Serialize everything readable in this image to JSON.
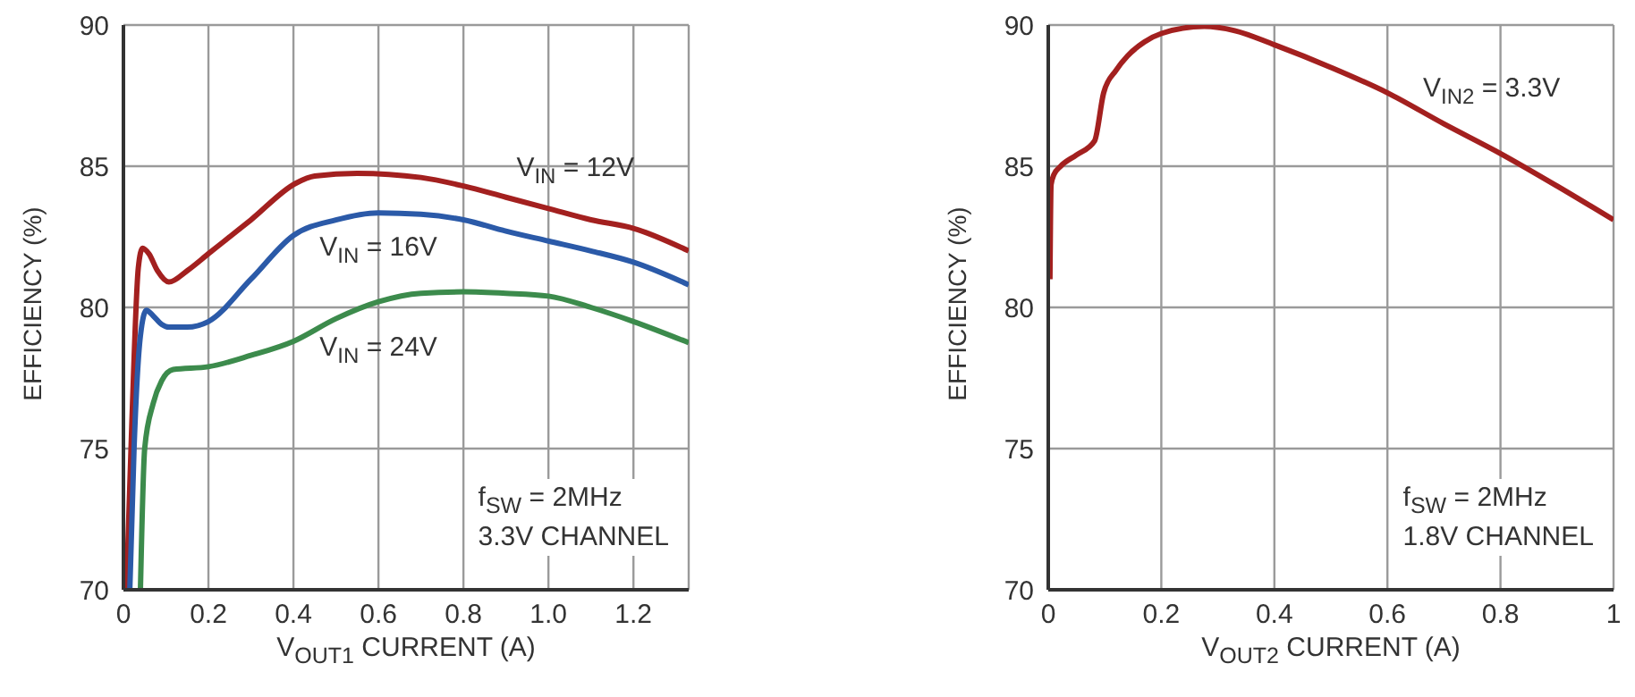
{
  "chart_data": [
    {
      "type": "line",
      "xlabel": "V$_{OUT1}$ CURRENT (A)",
      "ylabel": "EFFICIENCY (%)",
      "xlim": [
        0,
        1.33
      ],
      "xticks": [
        0,
        0.2,
        0.4,
        0.6,
        0.8,
        {
          "value": 1,
          "label": "1.0"
        },
        1.2
      ],
      "ylim": [
        70,
        90
      ],
      "yticks": [
        70,
        75,
        80,
        85,
        90
      ],
      "grid": true,
      "marker": "none",
      "annotations": [
        "f$_{SW}$ = 2MHz",
        "3.3V CHANNEL"
      ],
      "series": [
        {
          "name": "V$_{IN}$ = 12V",
          "color": "#a3201f",
          "x": [
            0.007,
            0.02,
            0.035,
            0.045,
            0.06,
            0.08,
            0.107,
            0.15,
            0.2,
            0.3,
            0.406,
            0.45,
            0.55,
            0.7,
            0.8,
            0.9,
            1.0,
            1.1,
            1.2,
            1.33
          ],
          "values": [
            70,
            76,
            81.4,
            82.1,
            81.9,
            81.3,
            80.9,
            81.3,
            81.9,
            83.1,
            84.4,
            84.65,
            84.75,
            84.6,
            84.3,
            83.9,
            83.5,
            83.1,
            82.8,
            82.0
          ]
        },
        {
          "name": "V$_{IN}$ = 16V",
          "color": "#2b5aa8",
          "x": [
            0.015,
            0.025,
            0.04,
            0.054,
            0.07,
            0.09,
            0.107,
            0.15,
            0.2,
            0.3,
            0.4,
            0.5,
            0.6,
            0.7,
            0.8,
            0.9,
            1.0,
            1.1,
            1.2,
            1.33
          ],
          "values": [
            70,
            75,
            79,
            79.9,
            79.7,
            79.4,
            79.3,
            79.3,
            79.5,
            81.0,
            82.55,
            83.1,
            83.35,
            83.3,
            83.1,
            82.7,
            82.35,
            82.0,
            81.6,
            80.8
          ]
        },
        {
          "name": "V$_{IN}$ = 24V",
          "color": "#3c8b4c",
          "x": [
            0.04,
            0.05,
            0.07,
            0.09,
            0.117,
            0.2,
            0.3,
            0.4,
            0.5,
            0.6,
            0.7,
            0.8,
            0.9,
            1.0,
            1.1,
            1.2,
            1.33
          ],
          "values": [
            70,
            75,
            76.6,
            77.4,
            77.8,
            77.9,
            78.3,
            78.8,
            79.6,
            80.2,
            80.5,
            80.55,
            80.5,
            80.4,
            80.0,
            79.5,
            78.75
          ]
        }
      ]
    },
    {
      "type": "line",
      "xlabel": "V$_{OUT2}$ CURRENT (A)",
      "ylabel": "EFFICIENCY (%)",
      "xlim": [
        0,
        1
      ],
      "xticks": [
        0,
        0.2,
        0.4,
        0.6,
        0.8,
        1
      ],
      "ylim": [
        70,
        90
      ],
      "yticks": [
        70,
        75,
        80,
        85,
        90
      ],
      "grid": true,
      "marker": "none",
      "annotations": [
        "f$_{SW}$ = 2MHz",
        "1.8V CHANNEL"
      ],
      "series": [
        {
          "name": "V$_{IN2}$ = 3.3V",
          "color": "#a3201f",
          "x": [
            0.003,
            0.005,
            0.01,
            0.022,
            0.05,
            0.082,
            0.098,
            0.12,
            0.14,
            0.17,
            0.2,
            0.276,
            0.33,
            0.4,
            0.5,
            0.6,
            0.7,
            0.8,
            0.9,
            1.0
          ],
          "values": [
            81.0,
            84.35,
            84.7,
            85.0,
            85.4,
            85.9,
            87.6,
            88.4,
            88.9,
            89.4,
            89.7,
            89.95,
            89.8,
            89.3,
            88.5,
            87.6,
            86.5,
            85.45,
            84.3,
            83.1
          ]
        }
      ]
    }
  ]
}
